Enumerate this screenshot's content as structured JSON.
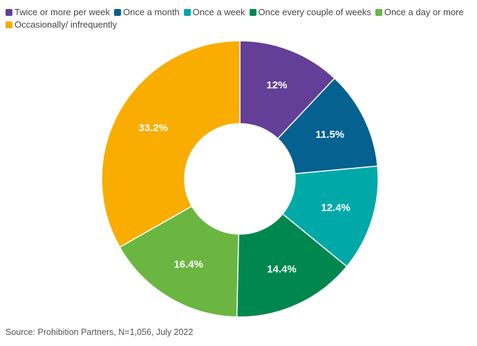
{
  "chart_data": {
    "type": "donut",
    "categories": [
      "Twice or more per week",
      "Once a month",
      "Once a week",
      "Once every couple of weeks",
      "Once a day or more",
      "Occasionally/ infrequently"
    ],
    "values": [
      12,
      11.5,
      12.4,
      14.4,
      16.4,
      33.2
    ],
    "value_labels": [
      "12%",
      "11.5%",
      "12.4%",
      "14.4%",
      "16.4%",
      "33.2%"
    ],
    "colors": [
      "#633f97",
      "#05618f",
      "#00a9a8",
      "#00874f",
      "#6ab641",
      "#f8ad00"
    ],
    "source": "Source: Prohibition Partners, N=1,056, July 2022"
  }
}
